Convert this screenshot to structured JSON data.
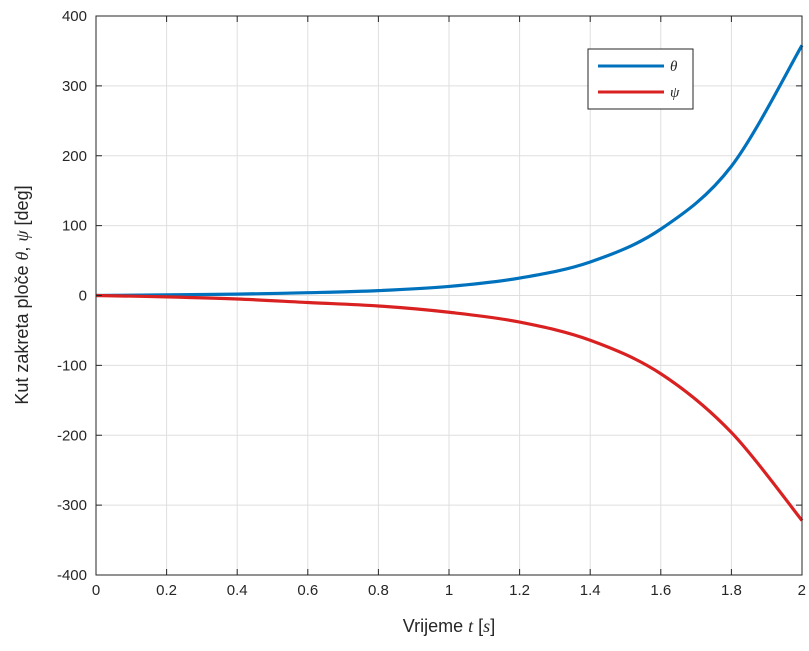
{
  "chart_data": {
    "type": "line",
    "xlabel_parts": [
      "Vrijeme ",
      "t",
      " [",
      "s",
      "]"
    ],
    "ylabel_parts": [
      "Kut zakreta ploče ",
      "θ",
      ", ",
      "ψ",
      " [deg]"
    ],
    "xlim": [
      0,
      2
    ],
    "ylim": [
      -400,
      400
    ],
    "xticks": [
      0,
      0.2,
      0.4,
      0.6,
      0.8,
      1,
      1.2,
      1.4,
      1.6,
      1.8,
      2
    ],
    "xtick_labels": [
      "0",
      "0.2",
      "0.4",
      "0.6",
      "0.8",
      "1",
      "1.2",
      "1.4",
      "1.6",
      "1.8",
      "2"
    ],
    "yticks": [
      -400,
      -300,
      -200,
      -100,
      0,
      100,
      200,
      300,
      400
    ],
    "ytick_labels": [
      "-400",
      "-300",
      "-200",
      "-100",
      "0",
      "100",
      "200",
      "300",
      "400"
    ],
    "grid": true,
    "legend_position": "top-right",
    "x": [
      0,
      0.2,
      0.4,
      0.6,
      0.8,
      1.0,
      1.2,
      1.4,
      1.6,
      1.8,
      2.0
    ],
    "series": [
      {
        "name": "θ",
        "color": "#0072BD",
        "values": [
          0,
          1,
          2,
          4,
          7,
          13,
          25,
          48,
          95,
          185,
          358
        ]
      },
      {
        "name": "ψ",
        "color": "#D92121",
        "values": [
          0,
          -2,
          -5,
          -10,
          -15,
          -24,
          -38,
          -64,
          -112,
          -196,
          -322
        ]
      }
    ]
  }
}
